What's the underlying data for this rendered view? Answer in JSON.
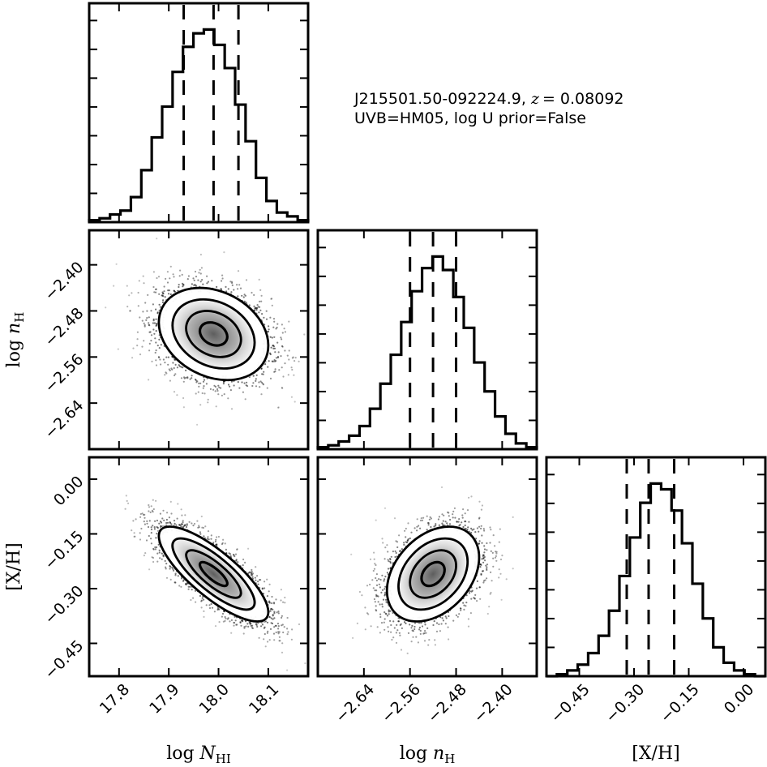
{
  "chart_data": {
    "type": "corner",
    "annotation": {
      "object_prefix": "J215501.50-092224.9, ",
      "z_label": "z",
      "z_value": "= 0.08092",
      "line2": "UVB=HM05, log U prior=False"
    },
    "parameters": [
      {
        "name": "log N_HI",
        "label_prefix": "log ",
        "label_var": "N",
        "label_sub": "HI",
        "range": [
          17.74,
          18.18
        ],
        "ticks": [
          17.8,
          17.9,
          18.0,
          18.1
        ],
        "tick_labels": [
          "17.8",
          "17.9",
          "18.0",
          "18.1"
        ],
        "median": 17.99,
        "q16": 17.93,
        "q84": 18.04,
        "hist_counts": [
          0.01,
          0.02,
          0.04,
          0.06,
          0.13,
          0.27,
          0.44,
          0.6,
          0.78,
          0.91,
          0.98,
          1.0,
          0.92,
          0.8,
          0.61,
          0.42,
          0.23,
          0.11,
          0.05,
          0.03,
          0.01
        ]
      },
      {
        "name": "log n_H",
        "label_prefix": "log ",
        "label_var": "n",
        "label_sub": "H",
        "range": [
          -2.72,
          -2.34
        ],
        "ticks": [
          -2.64,
          -2.56,
          -2.48,
          -2.4
        ],
        "tick_labels": [
          "−2.64",
          "−2.56",
          "−2.48",
          "−2.40"
        ],
        "median": -2.52,
        "q16": -2.56,
        "q84": -2.48,
        "hist_counts": [
          0.01,
          0.02,
          0.04,
          0.07,
          0.12,
          0.21,
          0.34,
          0.49,
          0.66,
          0.82,
          0.94,
          1.0,
          0.93,
          0.79,
          0.63,
          0.45,
          0.3,
          0.17,
          0.08,
          0.03,
          0.01
        ]
      },
      {
        "name": "[X/H]",
        "label_prefix": "",
        "label_var": "[X/H]",
        "label_sub": "",
        "range": [
          -0.54,
          0.06
        ],
        "ticks": [
          -0.45,
          -0.3,
          -0.15,
          0.0
        ],
        "tick_labels": [
          "−0.45",
          "−0.30",
          "−0.15",
          "0.00"
        ],
        "median": -0.26,
        "q16": -0.32,
        "q84": -0.19,
        "hist_counts": [
          0.0,
          0.01,
          0.03,
          0.06,
          0.12,
          0.21,
          0.34,
          0.52,
          0.72,
          0.9,
          1.0,
          0.97,
          0.86,
          0.69,
          0.48,
          0.3,
          0.15,
          0.07,
          0.03,
          0.01,
          0.0
        ]
      }
    ],
    "correlations": [
      {
        "pair": [
          "log N_HI",
          "log n_H"
        ],
        "rho": -0.25
      },
      {
        "pair": [
          "log N_HI",
          "[X/H]"
        ],
        "rho": -0.8
      },
      {
        "pair": [
          "log n_H",
          "[X/H]"
        ],
        "rho": 0.35
      }
    ],
    "contour_levels": [
      "0.5 sigma",
      "1 sigma",
      "1.5 sigma",
      "2 sigma"
    ],
    "grid": false
  }
}
